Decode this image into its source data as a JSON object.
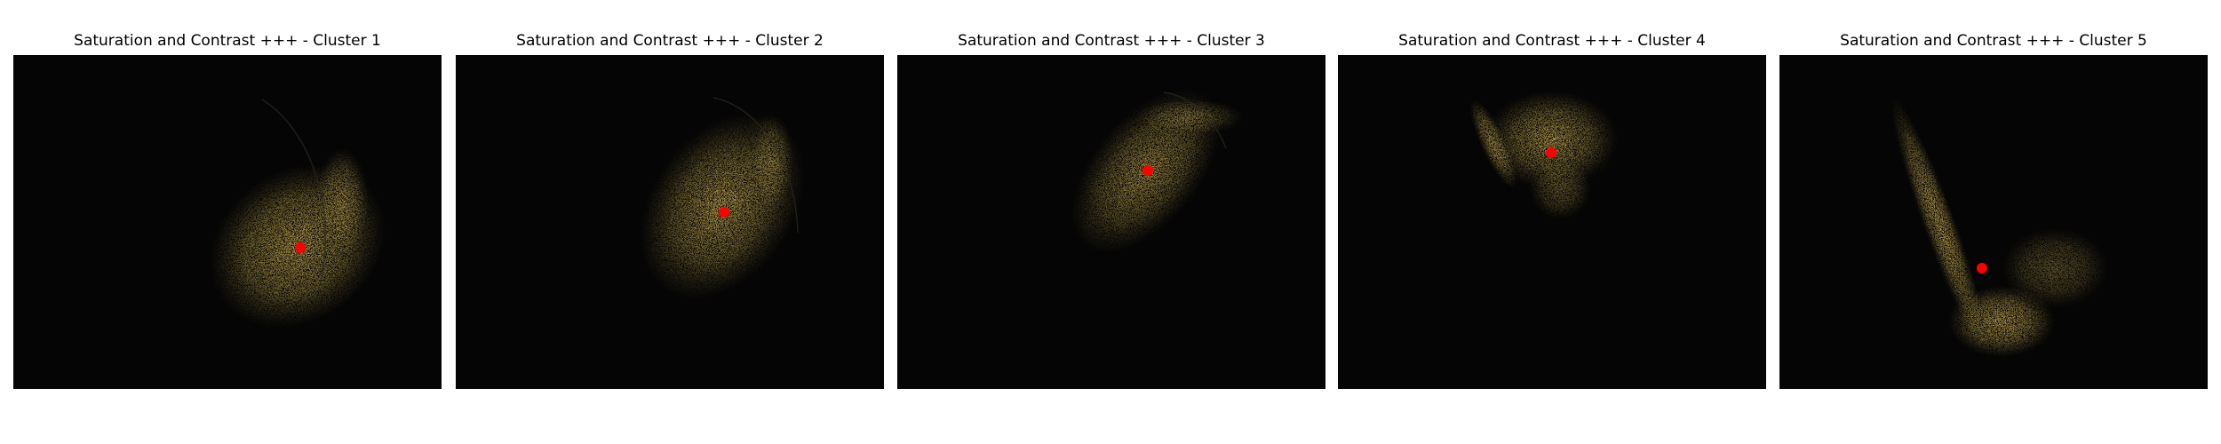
{
  "figure": {
    "background": "#ffffff",
    "image_background": "#050505",
    "point_color": "#b59a4a",
    "centroid_color": "#ff0000",
    "panels": [
      {
        "title": "Saturation and Contrast +++ - Cluster 1"
      },
      {
        "title": "Saturation and Contrast +++ - Cluster 2"
      },
      {
        "title": "Saturation and Contrast +++ - Cluster 3"
      },
      {
        "title": "Saturation and Contrast +++ - Cluster 4"
      },
      {
        "title": "Saturation and Contrast +++ - Cluster 5"
      }
    ]
  }
}
